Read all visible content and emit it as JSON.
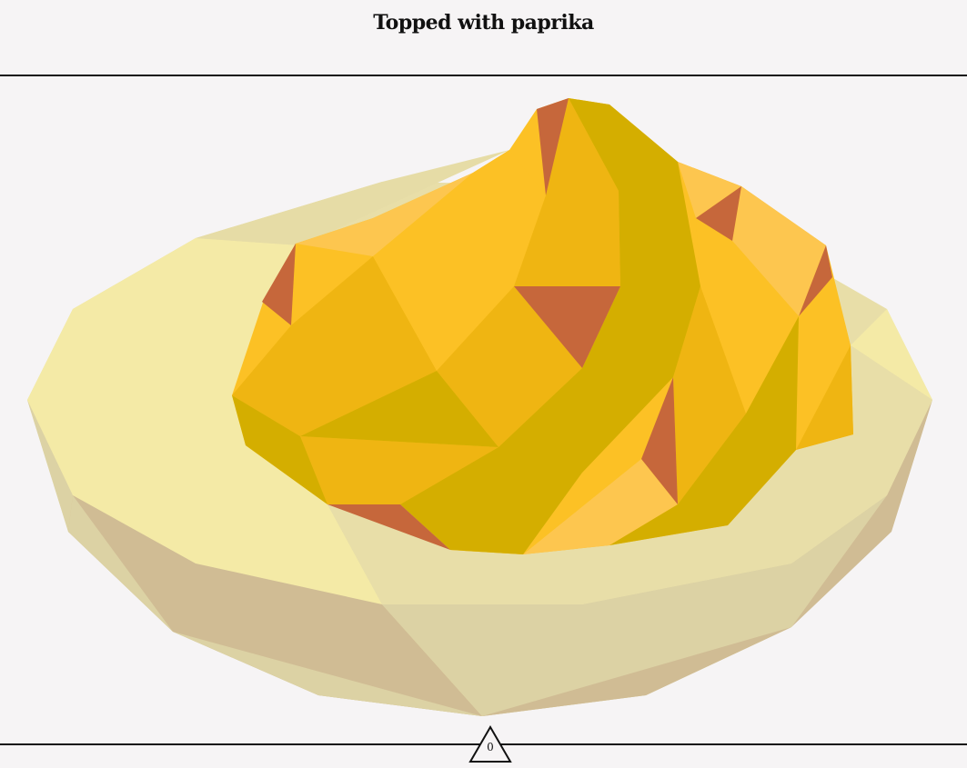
{
  "header": {
    "title": "Topped with paprika"
  },
  "illustration": {
    "subject": "deviled-egg",
    "colors": {
      "egg_white_light": "#f4eaa6",
      "egg_white_mid": "#e8dea8",
      "egg_white_shade": "#dcd2a4",
      "egg_white_dark": "#d0bc94",
      "yolk_light": "#fdc64f",
      "yolk": "#fcc125",
      "yolk_deep": "#efb512",
      "yolk_olive": "#d4ae00",
      "paprika": "#c6673b"
    }
  },
  "footer": {
    "counter_value": "0",
    "counter_icon": "triangle-icon"
  }
}
